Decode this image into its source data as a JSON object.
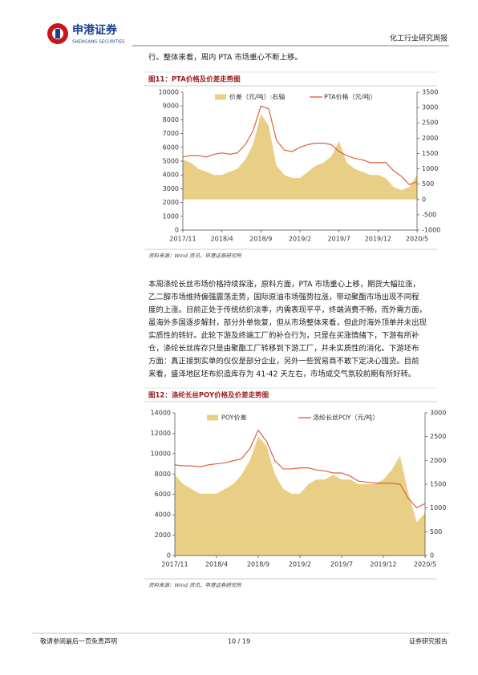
{
  "header": {
    "brand": "申港证券",
    "brand_en": "SHENGANG SECURITIES",
    "report": "化工行业研究周报"
  },
  "intro": "行。整体来看，周内 PTA 市场重心不断上移。",
  "paragraph": [
    "本周涤纶长丝市场价格持续探涨，原料方面，PTA 市场重心上移，期货大幅拉涨，",
    "乙二醇市场维持偏强震荡走势，国际原油市场强势拉涨，带动聚酯市场出现不同程",
    "度的上涨。目前正处于传统纺织淡季，内需表现平平，终端消费不畅，而外需方面，",
    "虽海外多国逐步解封，部分外单恢复，但从市场整体来看，但此时海外顶单并未出现",
    "实质性的转好。此轮下游及终端工厂的补仓行为，只是在买涨情绪下，下游有所补",
    "仓，涤纶长丝库存只是由聚酯工厂转移到下游工厂，并未实质性的消化。下游坯布",
    "方面：真正接到实单的仅仅是部分企业，另外一些贸易商不敢下定决心囤货。目前",
    "来看，盛泽地区坯布织造库存为 41-42 天左右，市场成交气氛较前期有所好转。"
  ],
  "footer": {
    "disclaimer": "敬请参阅最后一页免责声明",
    "page": "10 / 19",
    "kind": "证券研究报告"
  },
  "chart_data": [
    {
      "type": "line",
      "title": "图11：PTA价格及价差走势图",
      "source": "资料来源：Wind 资讯，申港证券研究所",
      "x": [
        "2017/11",
        "2017/12",
        "2018/1",
        "2018/2",
        "2018/3",
        "2018/4",
        "2018/5",
        "2018/6",
        "2018/7",
        "2018/8",
        "2018/9",
        "2018/10",
        "2018/11",
        "2018/12",
        "2019/1",
        "2019/2",
        "2019/3",
        "2019/4",
        "2019/5",
        "2019/6",
        "2019/7",
        "2019/8",
        "2019/9",
        "2019/10",
        "2019/11",
        "2019/12",
        "2020/1",
        "2020/2",
        "2020/3",
        "2020/4",
        "2020/5"
      ],
      "xticks": [
        "2017/11",
        "2018/4",
        "2018/9",
        "2019/2",
        "2019/7",
        "2019/12",
        "2020/5"
      ],
      "ylim": [
        0,
        10000
      ],
      "yticks": [
        0,
        1000,
        2000,
        3000,
        4000,
        5000,
        6000,
        7000,
        8000,
        9000,
        10000
      ],
      "y2lim": [
        -1000,
        3500
      ],
      "y2ticks": [
        -1000,
        -500,
        0,
        500,
        1000,
        1500,
        2000,
        2500,
        3000,
        3500
      ],
      "series": [
        {
          "name": "价差（元/吨）:右轴",
          "type": "area",
          "axis": "y2",
          "color": "#e8cf85",
          "values": [
            1300,
            1200,
            1000,
            900,
            800,
            800,
            900,
            1000,
            1300,
            1800,
            2800,
            2400,
            1100,
            800,
            700,
            700,
            900,
            1100,
            1200,
            1400,
            1900,
            1200,
            1000,
            900,
            800,
            800,
            700,
            400,
            300,
            400,
            800
          ]
        },
        {
          "name": "PTA价格（元/吨）",
          "type": "line",
          "color": "#e0603c",
          "values": [
            5300,
            5400,
            5400,
            5300,
            5500,
            5600,
            5500,
            5600,
            6200,
            7200,
            9000,
            8800,
            6500,
            5800,
            5700,
            6000,
            6200,
            6300,
            6300,
            6200,
            5700,
            5400,
            5200,
            5100,
            4900,
            4900,
            4900,
            4300,
            3900,
            3300,
            3500
          ]
        }
      ]
    },
    {
      "type": "line",
      "title": "图12：涤纶长丝POY价格及价差走势图",
      "source": "资料来源：Wind 资讯，申港证券研究所",
      "x": [
        "2017/11",
        "2017/12",
        "2018/1",
        "2018/2",
        "2018/3",
        "2018/4",
        "2018/5",
        "2018/6",
        "2018/7",
        "2018/8",
        "2018/9",
        "2018/10",
        "2018/11",
        "2018/12",
        "2019/1",
        "2019/2",
        "2019/3",
        "2019/4",
        "2019/5",
        "2019/6",
        "2019/7",
        "2019/8",
        "2019/9",
        "2019/10",
        "2019/11",
        "2019/12",
        "2020/1",
        "2020/2",
        "2020/3",
        "2020/4",
        "2020/5"
      ],
      "xticks": [
        "2017/11",
        "2018/4",
        "2018/9",
        "2019/2",
        "2019/7",
        "2019/12",
        "2020/5"
      ],
      "ylim": [
        0,
        14000
      ],
      "yticks": [
        0,
        2000,
        4000,
        6000,
        8000,
        10000,
        12000,
        14000
      ],
      "y2lim": [
        0,
        3000
      ],
      "y2ticks": [
        0,
        500,
        1000,
        1500,
        2000,
        2500,
        3000
      ],
      "series": [
        {
          "name": "POY价差",
          "type": "area",
          "axis": "y2",
          "color": "#e8cf85",
          "values": [
            1700,
            1500,
            1400,
            1300,
            1300,
            1300,
            1400,
            1500,
            1700,
            2000,
            2500,
            2300,
            1700,
            1400,
            1300,
            1300,
            1500,
            1600,
            1600,
            1700,
            1600,
            1600,
            1500,
            1500,
            1500,
            1600,
            1800,
            2100,
            1300,
            700,
            900
          ]
        },
        {
          "name": "涤纶长丝POY（元/吨）",
          "type": "line",
          "color": "#e0603c",
          "values": [
            8900,
            8800,
            8800,
            8700,
            8900,
            9000,
            9100,
            9300,
            9500,
            10500,
            12300,
            11200,
            9300,
            8500,
            8500,
            8600,
            8600,
            8400,
            8300,
            8100,
            8100,
            7800,
            7300,
            7200,
            7100,
            7100,
            7100,
            7000,
            5600,
            4700,
            5100
          ]
        }
      ]
    }
  ]
}
